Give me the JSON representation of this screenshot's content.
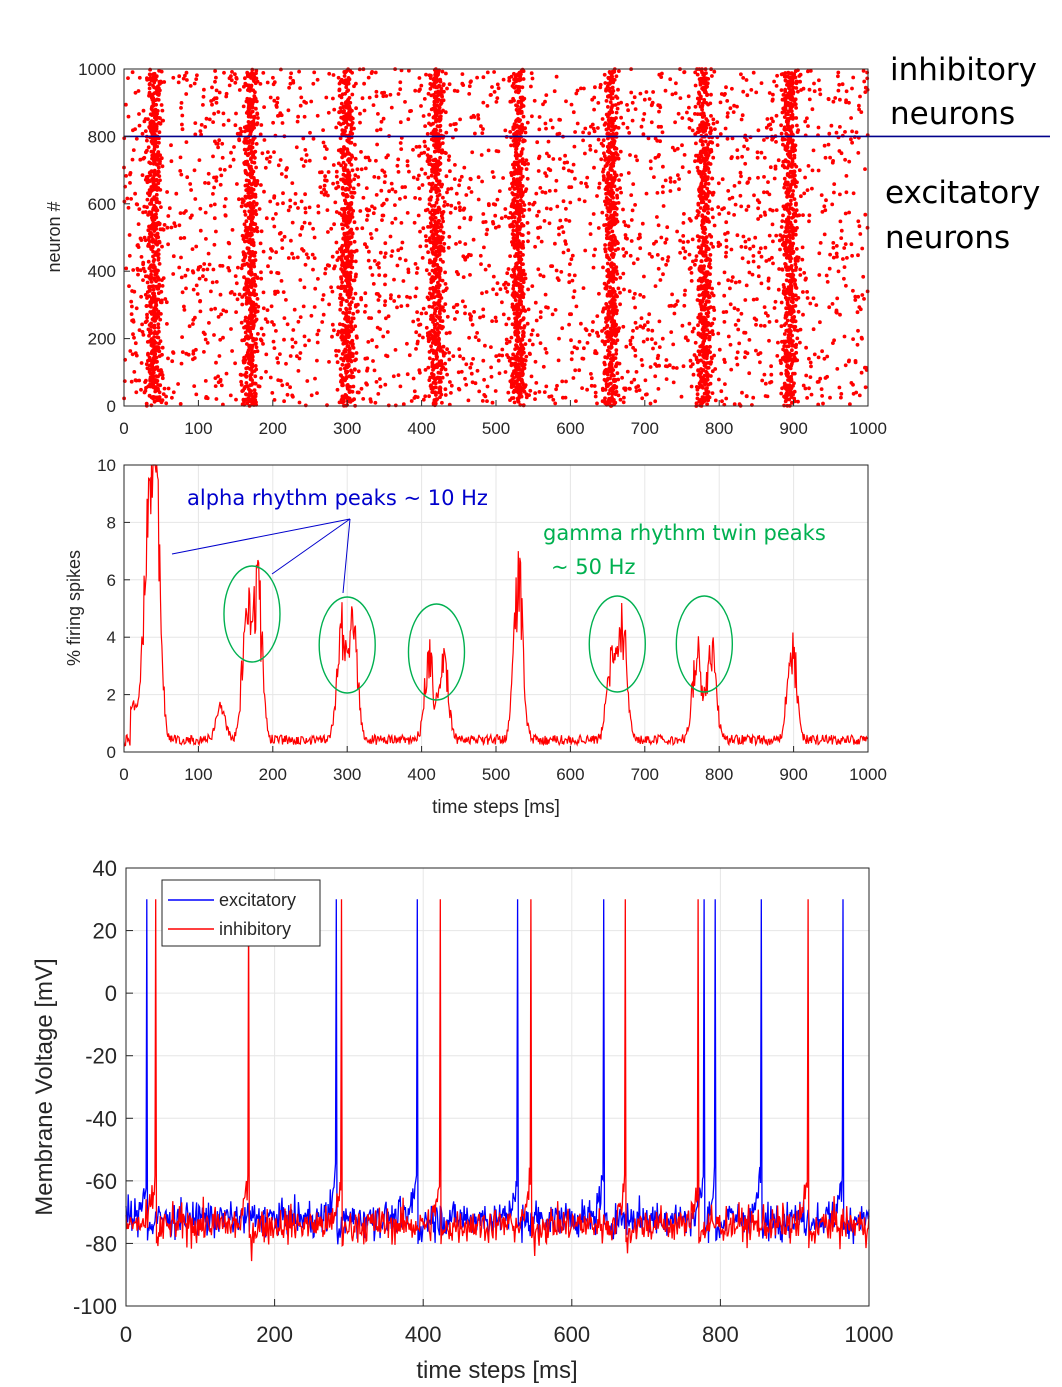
{
  "colors": {
    "spike": "#ff0000",
    "excitatory": "#0000ff",
    "inhibitory": "#ff0000",
    "divider": "#00008b",
    "alpha_annotation": "#0000cc",
    "gamma_annotation": "#00b050",
    "grid": "#e6e6e6",
    "axis": "#262626"
  },
  "side_labels": {
    "inhibitory_line1": "inhibitory",
    "inhibitory_line2": "neurons",
    "excitatory_line1": "excitatory",
    "excitatory_line2": "neurons"
  },
  "annotations": {
    "alpha": "alpha rhythm peaks ~ 10 Hz",
    "gamma_line1": "gamma rhythm twin peaks",
    "gamma_line2": "~ 50 Hz"
  },
  "chart_data": [
    {
      "type": "scatter",
      "title": "",
      "xlabel": "",
      "ylabel": "neuron #",
      "xlim": [
        0,
        1000
      ],
      "ylim": [
        0,
        1000
      ],
      "xticks": [
        0,
        100,
        200,
        300,
        400,
        500,
        600,
        700,
        800,
        900,
        1000
      ],
      "yticks": [
        0,
        200,
        400,
        600,
        800,
        1000
      ],
      "grid": false,
      "divider_y": 800,
      "population_bursts_ms": [
        40,
        170,
        300,
        420,
        530,
        655,
        780,
        895
      ],
      "series": [
        {
          "name": "spikes",
          "description_note": ""
        }
      ]
    },
    {
      "type": "line",
      "title": "",
      "xlabel": "time steps  [ms]",
      "ylabel": "% firing spikes",
      "xlim": [
        0,
        1000
      ],
      "ylim": [
        0,
        10
      ],
      "xticks": [
        0,
        100,
        200,
        300,
        400,
        500,
        600,
        700,
        800,
        900,
        1000
      ],
      "yticks": [
        0,
        2,
        4,
        6,
        8,
        10
      ],
      "grid": true,
      "series": [
        {
          "name": "",
          "peaks": [
            {
              "x": 30,
              "y": 5.9
            },
            {
              "x": 40,
              "y": 9.6
            },
            {
              "x": 45,
              "y": 3.8
            },
            {
              "x": 130,
              "y": 1.3
            },
            {
              "x": 165,
              "y": 5.5
            },
            {
              "x": 180,
              "y": 6.2
            },
            {
              "x": 292,
              "y": 4.9
            },
            {
              "x": 308,
              "y": 4.8
            },
            {
              "x": 410,
              "y": 3.5
            },
            {
              "x": 430,
              "y": 3.3
            },
            {
              "x": 530,
              "y": 7.0
            },
            {
              "x": 655,
              "y": 3.6
            },
            {
              "x": 670,
              "y": 4.9
            },
            {
              "x": 770,
              "y": 3.8
            },
            {
              "x": 790,
              "y": 4.1
            },
            {
              "x": 898,
              "y": 4.3
            }
          ]
        }
      ],
      "circled_peaks_x": [
        172,
        300,
        420,
        663,
        780
      ]
    },
    {
      "type": "line",
      "title": "",
      "xlabel": "time steps  [ms]",
      "ylabel": "Membrane Voltage  [mV]",
      "xlim": [
        0,
        1000
      ],
      "ylim": [
        -100,
        40
      ],
      "xticks": [
        0,
        200,
        400,
        600,
        800,
        1000
      ],
      "yticks": [
        -100,
        -80,
        -60,
        -40,
        -20,
        0,
        20,
        40
      ],
      "grid": true,
      "legend_position": "top-left",
      "baseline_mv": -72,
      "spike_peak_mv": 30,
      "series": [
        {
          "name": "excitatory",
          "spike_times_ms": [
            28,
            283,
            392,
            527,
            643,
            778,
            793,
            855,
            965
          ]
        },
        {
          "name": "inhibitory",
          "spike_times_ms": [
            40,
            165,
            290,
            423,
            545,
            672,
            770,
            918
          ]
        }
      ]
    }
  ]
}
